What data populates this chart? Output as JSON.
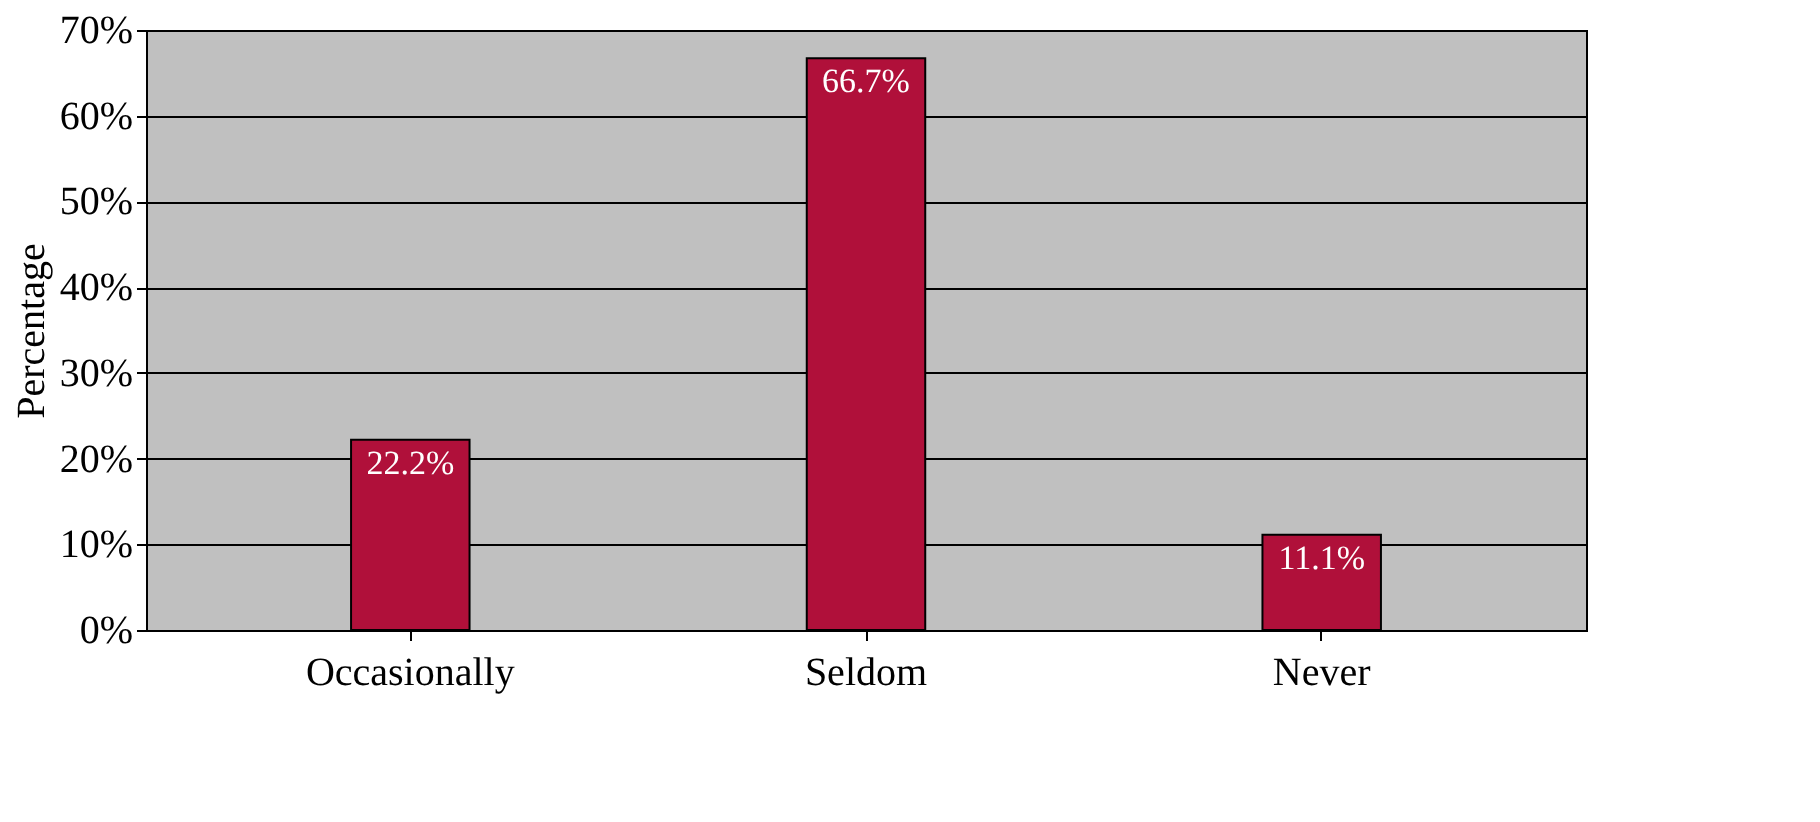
{
  "chart_data": {
    "type": "bar",
    "ylabel": "Percentage",
    "categories": [
      "Occasionally",
      "Seldom",
      "Never"
    ],
    "values": [
      22.2,
      66.7,
      11.1
    ],
    "value_labels": [
      "22.2%",
      "66.7%",
      "11.1%"
    ],
    "color": "#b0103a",
    "ylim": [
      0,
      70
    ],
    "yticks": [
      {
        "value": 0,
        "label": "0%"
      },
      {
        "value": 10,
        "label": "10%"
      },
      {
        "value": 20,
        "label": "20%"
      },
      {
        "value": 30,
        "label": "30%"
      },
      {
        "value": 40,
        "label": "40%"
      },
      {
        "value": 50,
        "label": "50%"
      },
      {
        "value": 60,
        "label": "60%"
      },
      {
        "value": 70,
        "label": "70%"
      }
    ],
    "grid": "y"
  }
}
